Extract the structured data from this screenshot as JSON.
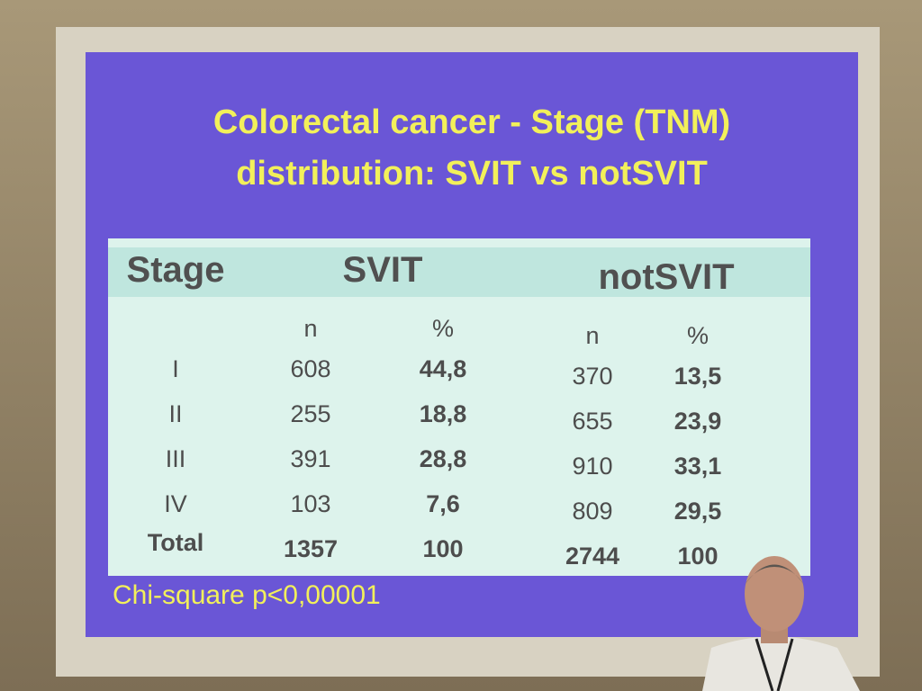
{
  "slide": {
    "title_lines": [
      "Colorectal cancer - Stage (TNM)",
      "distribution: SVIT vs notSVIT"
    ],
    "table": {
      "header": [
        "Stage",
        "SVIT",
        "notSVIT"
      ],
      "subheader": [
        "n",
        "%",
        "n",
        "%"
      ],
      "rows": [
        [
          "I",
          "608",
          "44,8",
          "370",
          "13,5"
        ],
        [
          "II",
          "255",
          "18,8",
          "655",
          "23,9"
        ],
        [
          "III",
          "391",
          "28,8",
          "910",
          "33,1"
        ],
        [
          "IV",
          "103",
          "7,6",
          "809",
          "29,5"
        ],
        [
          "Total",
          "1357",
          "100",
          "2744",
          "100"
        ]
      ]
    },
    "footnote": "Chi-square p<0,00001"
  }
}
